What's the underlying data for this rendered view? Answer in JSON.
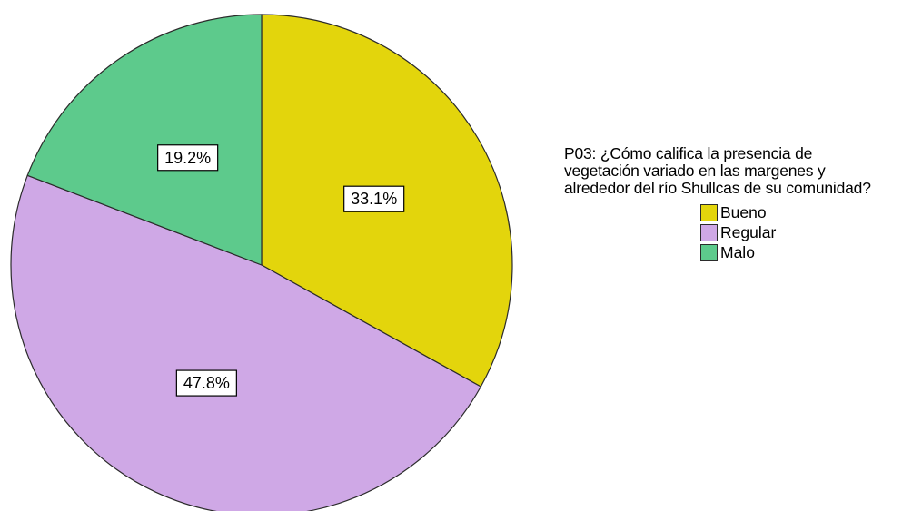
{
  "chart_data": {
    "type": "pie",
    "legend_title": "P03: ¿Cómo califica la presencia de\nvegetación variado en las margenes y\nalrededor del río Shullcas de su comunidad?",
    "legend_position": "right",
    "start_angle_deg": 0,
    "direction": "clockwise",
    "slices": [
      {
        "label": "Bueno",
        "value": 33.1,
        "value_label": "33.1%",
        "color": "#e3d50c"
      },
      {
        "label": "Regular",
        "value": 47.8,
        "value_label": "47.8%",
        "color": "#cfa8e6"
      },
      {
        "label": "Malo",
        "value": 19.2,
        "value_label": "19.2%",
        "color": "#5dca8c"
      }
    ]
  }
}
